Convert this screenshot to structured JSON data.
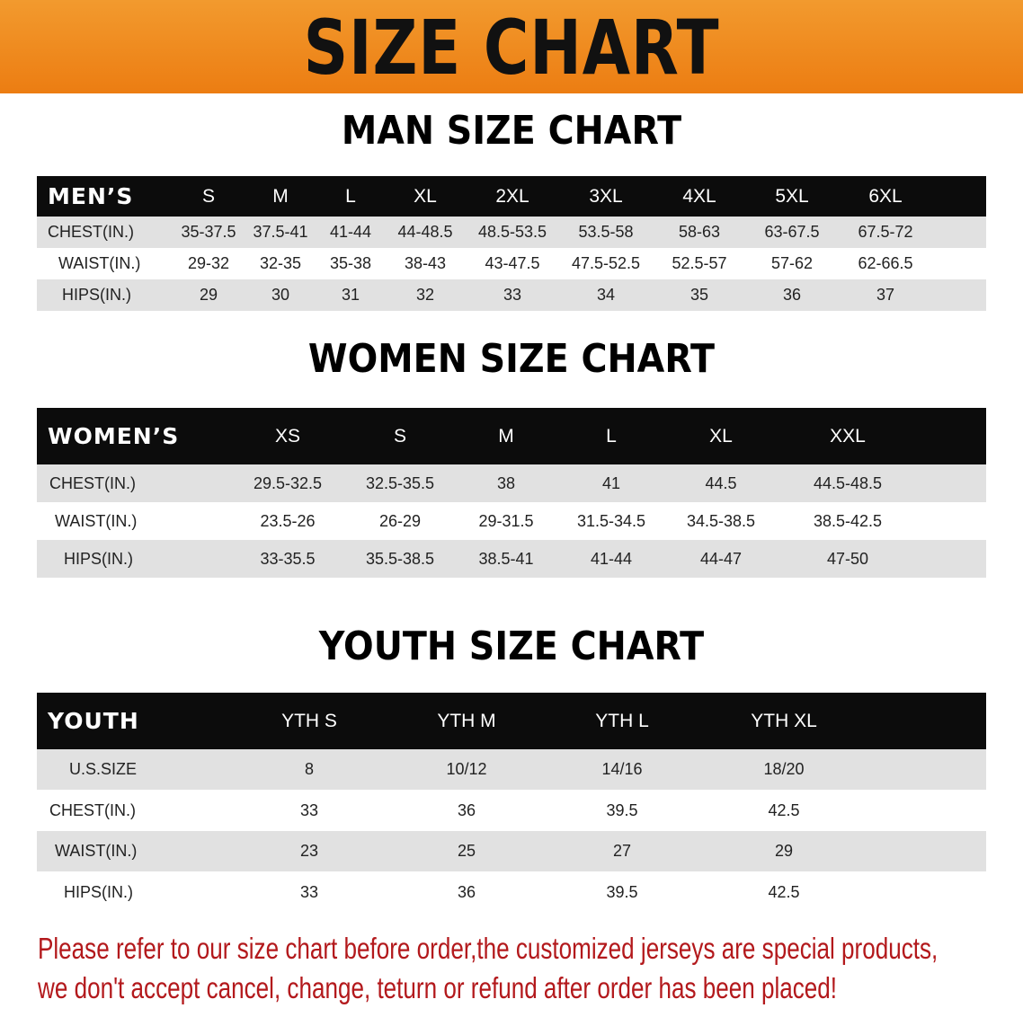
{
  "banner_title": "SIZE CHART",
  "colors": {
    "banner": "#ec7d12",
    "header_row": "#0c0c0c",
    "stripe": "#e1e1e1",
    "note": "#b3191c"
  },
  "men": {
    "title": "MAN SIZE CHART",
    "header": [
      "MEN’S",
      "S",
      "M",
      "L",
      "XL",
      "2XL",
      "3XL",
      "4XL",
      "5XL",
      "6XL"
    ],
    "rows": [
      [
        "CHEST(IN.)",
        "35-37.5",
        "37.5-41",
        "41-44",
        "44-48.5",
        "48.5-53.5",
        "53.5-58",
        "58-63",
        "63-67.5",
        "67.5-72"
      ],
      [
        "WAIST(IN.)",
        "29-32",
        "32-35",
        "35-38",
        "38-43",
        "43-47.5",
        "47.5-52.5",
        "52.5-57",
        "57-62",
        "62-66.5"
      ],
      [
        "HIPS(IN.)",
        "29",
        "30",
        "31",
        "32",
        "33",
        "34",
        "35",
        "36",
        "37"
      ]
    ]
  },
  "women": {
    "title": "WOMEN SIZE CHART",
    "header": [
      "WOMEN’S",
      "XS",
      "S",
      "M",
      "L",
      "XL",
      "XXL"
    ],
    "rows": [
      [
        "CHEST(IN.)",
        "29.5-32.5",
        "32.5-35.5",
        "38",
        "41",
        "44.5",
        "44.5-48.5"
      ],
      [
        "WAIST(IN.)",
        "23.5-26",
        "26-29",
        "29-31.5",
        "31.5-34.5",
        "34.5-38.5",
        "38.5-42.5"
      ],
      [
        "HIPS(IN.)",
        "33-35.5",
        "35.5-38.5",
        "38.5-41",
        "41-44",
        "44-47",
        "47-50"
      ]
    ]
  },
  "youth": {
    "title": "YOUTH SIZE CHART",
    "header": [
      "YOUTH",
      "YTH S",
      "YTH M",
      "YTH L",
      "YTH XL"
    ],
    "rows": [
      [
        "U.S.SIZE",
        "8",
        "10/12",
        "14/16",
        "18/20"
      ],
      [
        "CHEST(IN.)",
        "33",
        "36",
        "39.5",
        "42.5"
      ],
      [
        "WAIST(IN.)",
        "23",
        "25",
        "27",
        "29"
      ],
      [
        "HIPS(IN.)",
        "33",
        "36",
        "39.5",
        "42.5"
      ]
    ]
  },
  "notice": {
    "line1": "Please refer to our size chart before order,the customized jerseys are special products,",
    "line2": "we don't accept cancel, change, teturn or refund after order has been placed!"
  }
}
